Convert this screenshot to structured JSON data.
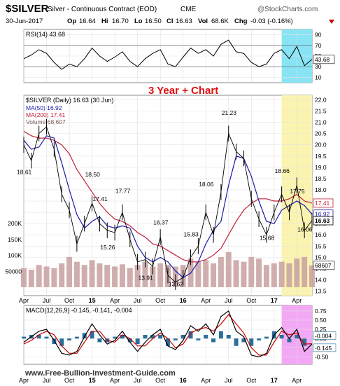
{
  "header": {
    "symbol": "$SILVER",
    "contract": "Silver - Continuous Contract (EOD)",
    "exchange": "CME",
    "brand": "@StockCharts.com",
    "date": "30-Jun-2017",
    "quote": {
      "op": "16.64",
      "hi": "16.70",
      "lo": "16.50",
      "cl": "16.63",
      "vol": "68.6K",
      "chg": "-0.03 (-0.16%)"
    },
    "quote_labels": {
      "op": "Op",
      "hi": "Hi",
      "lo": "Lo",
      "cl": "Cl",
      "vol": "Vol",
      "chg": "Chg"
    }
  },
  "annotation": "3 Year + Chart",
  "watermark": "www.Free-Bullion-Investment-Guide.com",
  "colors": {
    "price": "#000000",
    "ma50": "#1a1aa8",
    "ma200": "#c0203a",
    "volume_up": "#c8a0a0",
    "volume_down": "#c8a0a0",
    "rsi_band": "#88e4f4",
    "price_band": "#fbf4b0",
    "macd_band": "#f2a8f4",
    "macd_line": "#000000",
    "signal_line": "#cc0000",
    "histogram": "#2a6f9a",
    "annotation": "#e01010"
  },
  "chart_data": [
    {
      "type": "line",
      "panel": "rsi",
      "legend": "RSI(14) 43.68",
      "current_label": "43.68",
      "ylim": [
        0,
        100
      ],
      "y_ticks": [
        "90",
        "70",
        "50",
        "30",
        "10"
      ],
      "reference_lines": [
        70,
        30
      ],
      "x": [
        "2014-04",
        "2014-05",
        "2014-06",
        "2014-07",
        "2014-08",
        "2014-09",
        "2014-10",
        "2014-11",
        "2014-12",
        "2015-01",
        "2015-02",
        "2015-03",
        "2015-04",
        "2015-05",
        "2015-06",
        "2015-07",
        "2015-08",
        "2015-09",
        "2015-10",
        "2015-11",
        "2015-12",
        "2016-01",
        "2016-02",
        "2016-03",
        "2016-04",
        "2016-05",
        "2016-06",
        "2016-07",
        "2016-08",
        "2016-09",
        "2016-10",
        "2016-11",
        "2016-12",
        "2017-01",
        "2017-02",
        "2017-03",
        "2017-04",
        "2017-05",
        "2017-06"
      ],
      "values": [
        45,
        52,
        62,
        55,
        38,
        25,
        35,
        30,
        45,
        65,
        50,
        40,
        48,
        58,
        40,
        30,
        45,
        55,
        62,
        35,
        30,
        48,
        65,
        55,
        62,
        50,
        72,
        80,
        58,
        55,
        38,
        30,
        35,
        55,
        62,
        45,
        68,
        32,
        43.68
      ]
    },
    {
      "type": "line",
      "panel": "price",
      "legend": [
        "$SILVER (Daily) 16.63 (30 Jun)",
        "MA(50) 16.92",
        "MA(200) 17.41",
        "Volume 68,607"
      ],
      "price_tags": [
        "17.41",
        "16.92",
        "16.63"
      ],
      "ylim": [
        13.3,
        22.2
      ],
      "y_ticks": [
        "22.0",
        "21.5",
        "21.0",
        "20.5",
        "20.0",
        "19.5",
        "19.0",
        "18.5",
        "18.0",
        "17.5",
        "17.0",
        "16.5",
        "16.0",
        "15.5",
        "15.0",
        "14.5",
        "14.0",
        "13.5"
      ],
      "volume_ticks": [
        "200K",
        "150K",
        "100K",
        "50000"
      ],
      "volume_current_label": "68607",
      "x": [
        "2014-04",
        "2014-05",
        "2014-06",
        "2014-07",
        "2014-08",
        "2014-09",
        "2014-10",
        "2014-11",
        "2014-12",
        "2015-01",
        "2015-02",
        "2015-03",
        "2015-04",
        "2015-05",
        "2015-06",
        "2015-07",
        "2015-08",
        "2015-09",
        "2015-10",
        "2015-11",
        "2015-12",
        "2016-01",
        "2016-02",
        "2016-03",
        "2016-04",
        "2016-05",
        "2016-06",
        "2016-07",
        "2016-08",
        "2016-09",
        "2016-10",
        "2016-11",
        "2016-12",
        "2017-01",
        "2017-02",
        "2017-03",
        "2017-04",
        "2017-05",
        "2017-06"
      ],
      "series": [
        {
          "name": "$SILVER (Daily)",
          "values": [
            20.0,
            19.3,
            20.5,
            20.8,
            19.8,
            17.8,
            17.1,
            15.6,
            16.5,
            17.4,
            16.5,
            16.2,
            16.1,
            17.0,
            15.8,
            14.8,
            14.9,
            14.6,
            15.9,
            14.2,
            13.9,
            14.1,
            15.0,
            15.5,
            17.0,
            16.0,
            17.9,
            20.5,
            19.7,
            19.4,
            17.6,
            16.7,
            16.0,
            17.0,
            17.8,
            17.0,
            18.2,
            16.2,
            16.63
          ]
        },
        {
          "name": "MA(50)",
          "values": [
            20.2,
            19.8,
            19.9,
            20.4,
            20.3,
            19.2,
            18.0,
            16.9,
            16.3,
            16.6,
            16.8,
            16.4,
            16.3,
            16.4,
            16.3,
            15.5,
            15.0,
            14.8,
            15.0,
            14.8,
            14.4,
            14.1,
            14.3,
            14.8,
            15.6,
            16.2,
            16.6,
            18.2,
            19.5,
            19.4,
            18.6,
            17.5,
            16.6,
            16.5,
            17.1,
            17.3,
            17.5,
            17.3,
            16.92
          ]
        },
        {
          "name": "MA(200)",
          "values": [
            20.6,
            20.4,
            20.3,
            20.3,
            20.2,
            20.0,
            19.6,
            18.9,
            18.4,
            17.9,
            17.4,
            17.0,
            16.7,
            16.6,
            16.4,
            16.1,
            15.9,
            15.6,
            15.5,
            15.3,
            15.1,
            14.9,
            14.8,
            14.8,
            14.9,
            15.1,
            15.4,
            16.0,
            16.6,
            17.1,
            17.4,
            17.6,
            17.6,
            17.5,
            17.5,
            17.6,
            17.8,
            17.5,
            17.41
          ]
        }
      ],
      "volume": [
        60000,
        55000,
        70000,
        65000,
        60000,
        75000,
        95000,
        80000,
        70000,
        85000,
        75000,
        70000,
        65000,
        72000,
        60000,
        70000,
        80000,
        65000,
        75000,
        70000,
        65000,
        70000,
        90000,
        80000,
        85000,
        75000,
        95000,
        110000,
        85000,
        80000,
        95000,
        90000,
        70000,
        75000,
        80000,
        75000,
        90000,
        95000,
        68607
      ],
      "annotations": [
        {
          "label": "18.61",
          "x": "2014-04",
          "y": 18.61
        },
        {
          "label": "18.50",
          "x": "2015-01",
          "y": 18.5
        },
        {
          "label": "17.41",
          "x": "2015-02",
          "y": 17.41
        },
        {
          "label": "17.77",
          "x": "2015-05",
          "y": 17.77
        },
        {
          "label": "15.26",
          "x": "2015-03",
          "y": 15.26
        },
        {
          "label": "16.37",
          "x": "2015-10",
          "y": 16.37
        },
        {
          "label": "13.91",
          "x": "2015-08",
          "y": 13.91
        },
        {
          "label": "13.62",
          "x": "2015-12",
          "y": 13.62
        },
        {
          "label": "15.83",
          "x": "2016-02",
          "y": 15.83
        },
        {
          "label": "18.06",
          "x": "2016-04",
          "y": 18.06
        },
        {
          "label": "21.23",
          "x": "2016-07",
          "y": 21.23
        },
        {
          "label": "15.68",
          "x": "2016-12",
          "y": 15.68
        },
        {
          "label": "18.66",
          "x": "2017-02",
          "y": 18.66
        },
        {
          "label": "17.75",
          "x": "2017-04",
          "y": 17.75
        },
        {
          "label": "16.06",
          "x": "2017-05",
          "y": 16.06
        }
      ],
      "highlight": {
        "from": "2017-02",
        "to": "2017-06"
      }
    },
    {
      "type": "line",
      "panel": "macd",
      "legend": "MACD(12,26,9) -0.145, -0.141, -0.004",
      "macd_labels": [
        "-0.004",
        "-0.145"
      ],
      "ylim": [
        -0.7,
        0.9
      ],
      "y_ticks": [
        "0.75",
        "0.50",
        "0.25",
        "0.00",
        "-0.25",
        "-0.50"
      ],
      "x": [
        "2014-04",
        "2014-05",
        "2014-06",
        "2014-07",
        "2014-08",
        "2014-09",
        "2014-10",
        "2014-11",
        "2014-12",
        "2015-01",
        "2015-02",
        "2015-03",
        "2015-04",
        "2015-05",
        "2015-06",
        "2015-07",
        "2015-08",
        "2015-09",
        "2015-10",
        "2015-11",
        "2015-12",
        "2016-01",
        "2016-02",
        "2016-03",
        "2016-04",
        "2016-05",
        "2016-06",
        "2016-07",
        "2016-08",
        "2016-09",
        "2016-10",
        "2016-11",
        "2016-12",
        "2017-01",
        "2017-02",
        "2017-03",
        "2017-04",
        "2017-05",
        "2017-06"
      ],
      "series": [
        {
          "name": "MACD",
          "values": [
            -0.1,
            0.05,
            0.2,
            0.25,
            -0.05,
            -0.4,
            -0.45,
            -0.35,
            0.05,
            0.4,
            0.1,
            -0.15,
            -0.05,
            0.2,
            -0.1,
            -0.35,
            -0.1,
            0.1,
            0.25,
            -0.2,
            -0.3,
            -0.05,
            0.35,
            0.2,
            0.4,
            0.1,
            0.6,
            0.75,
            0.2,
            0.05,
            -0.45,
            -0.5,
            -0.4,
            0.1,
            0.3,
            0.0,
            0.25,
            -0.35,
            -0.145
          ]
        },
        {
          "name": "Signal",
          "values": [
            -0.15,
            -0.05,
            0.1,
            0.2,
            0.1,
            -0.2,
            -0.4,
            -0.4,
            -0.1,
            0.2,
            0.2,
            -0.05,
            -0.1,
            0.1,
            0.0,
            -0.2,
            -0.2,
            0.0,
            0.15,
            0.0,
            -0.25,
            -0.15,
            0.15,
            0.25,
            0.3,
            0.2,
            0.4,
            0.65,
            0.4,
            0.15,
            -0.25,
            -0.45,
            -0.45,
            -0.1,
            0.2,
            0.1,
            0.15,
            -0.15,
            -0.141
          ]
        },
        {
          "name": "Histogram",
          "values": [
            0.05,
            0.1,
            0.1,
            0.05,
            -0.15,
            -0.2,
            -0.05,
            0.05,
            0.15,
            0.2,
            -0.1,
            -0.1,
            0.05,
            0.1,
            -0.1,
            -0.15,
            0.1,
            0.1,
            0.1,
            -0.2,
            -0.05,
            0.1,
            0.2,
            -0.05,
            0.1,
            -0.1,
            0.2,
            0.1,
            -0.2,
            -0.1,
            -0.2,
            -0.05,
            0.05,
            0.2,
            0.1,
            -0.1,
            0.1,
            -0.2,
            -0.004
          ]
        }
      ],
      "highlight": {
        "from": "2017-02",
        "to": "2017-06"
      }
    }
  ],
  "x_axis_labels": {
    "top": [
      "Apr",
      "Jul",
      "Oct",
      "15",
      "Apr",
      "Jul",
      "Oct",
      "16",
      "Apr",
      "Jul",
      "Oct",
      "17",
      "Apr"
    ],
    "bottom": [
      "Apr",
      "Jul",
      "Oct",
      "15",
      "Apr",
      "Jul",
      "Oct",
      "16",
      "Apr",
      "Jul",
      "Oct",
      "17",
      "Apr"
    ]
  }
}
